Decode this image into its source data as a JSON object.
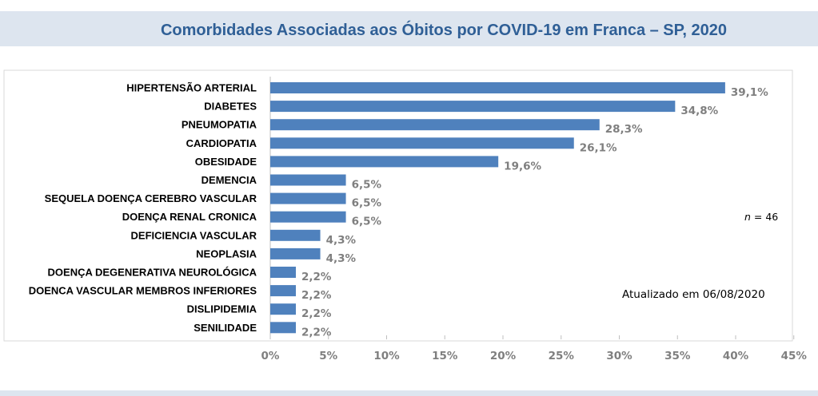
{
  "colors": {
    "bar": "#4f81bd",
    "title": "#2f5f96",
    "band": "#dde5ef",
    "value_text": "#7f7f7f",
    "grid": "#d9d9d9"
  },
  "chart_data": {
    "type": "bar",
    "orientation": "horizontal",
    "title": "Comorbidades Associadas aos Óbitos por COVID-19 em Franca – SP, 2020",
    "categories": [
      "HIPERTENSÃO ARTERIAL",
      "DIABETES",
      "PNEUMOPATIA",
      "CARDIOPATIA",
      "OBESIDADE",
      "DEMENCIA",
      "SEQUELA DOENÇA CEREBRO VASCULAR",
      "DOENÇA RENAL CRONICA",
      "DEFICIENCIA VASCULAR",
      "NEOPLASIA",
      "DOENÇA DEGENERATIVA NEUROLÓGICA",
      "DOENCA VASCULAR MEMBROS INFERIORES",
      "DISLIPIDEMIA",
      "SENILIDADE"
    ],
    "values": [
      39.1,
      34.8,
      28.3,
      26.1,
      19.6,
      6.5,
      6.5,
      6.5,
      4.3,
      4.3,
      2.2,
      2.2,
      2.2,
      2.2
    ],
    "value_labels": [
      "39,1%",
      "34,8%",
      "28,3%",
      "26,1%",
      "19,6%",
      "6,5%",
      "6,5%",
      "6,5%",
      "4,3%",
      "4,3%",
      "2,2%",
      "2,2%",
      "2,2%",
      "2,2%"
    ],
    "x_ticks": [
      "0%",
      "5%",
      "10%",
      "15%",
      "20%",
      "25%",
      "30%",
      "35%",
      "40%",
      "45%"
    ],
    "xlim": [
      0,
      45
    ],
    "grid": false,
    "annotations": {
      "n_italic": "n",
      "n_value": " = 46",
      "updated": "Atualizado em  06/08/2020"
    }
  }
}
